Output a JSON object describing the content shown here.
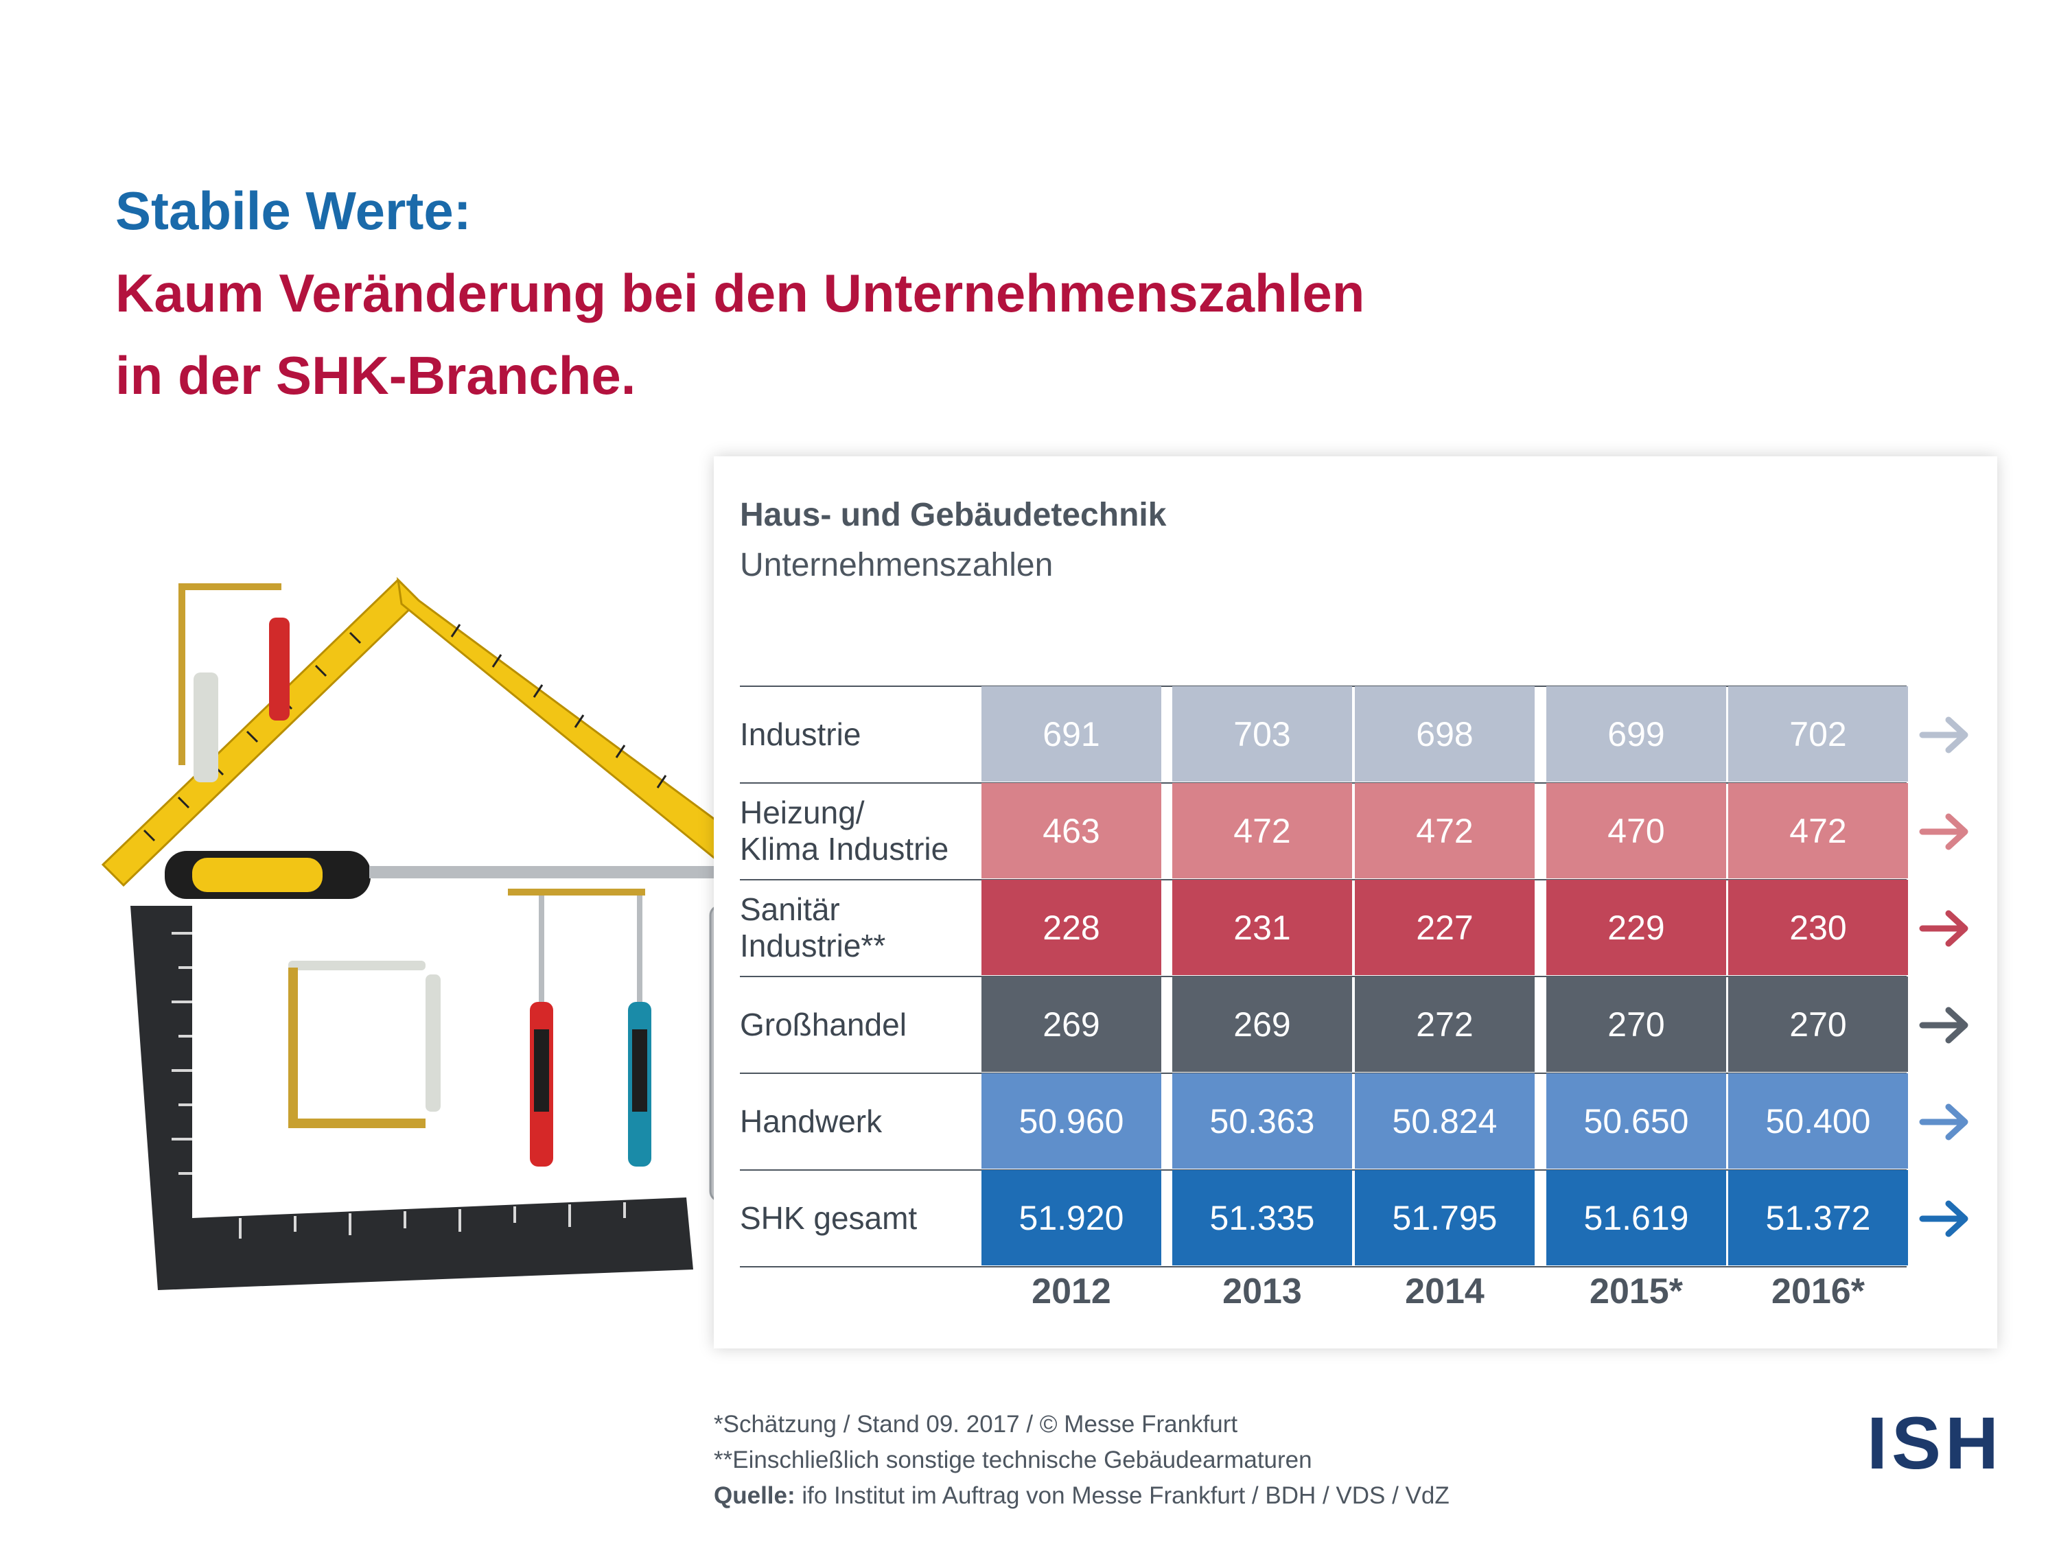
{
  "headline": {
    "line1": "Stabile Werte:",
    "line2": "Kaum Veränderung bei den Unternehmenszahlen",
    "line3": "in der SHK-Branche."
  },
  "chart_data": {
    "type": "table",
    "title": "Haus- und Gebäudetechnik",
    "subtitle": "Unternehmenszahlen",
    "categories": [
      "2012",
      "2013",
      "2014",
      "2015*",
      "2016*"
    ],
    "series": [
      {
        "name": "Industrie",
        "values": [
          "691",
          "703",
          "698",
          "699",
          "702"
        ],
        "color": "#b7c0d0",
        "arrow_color": "#b7c0d0"
      },
      {
        "name": "Heizung/\nKlima Industrie",
        "values": [
          "463",
          "472",
          "472",
          "470",
          "472"
        ],
        "color": "#d8828a",
        "arrow_color": "#d8828a"
      },
      {
        "name": "Sanitär\nIndustrie**",
        "values": [
          "228",
          "231",
          "227",
          "229",
          "230"
        ],
        "color": "#c14558",
        "arrow_color": "#c14558"
      },
      {
        "name": "Großhandel",
        "values": [
          "269",
          "269",
          "272",
          "270",
          "270"
        ],
        "color": "#59616b",
        "arrow_color": "#59616b"
      },
      {
        "name": "Handwerk",
        "values": [
          "50.960",
          "50.363",
          "50.824",
          "50.650",
          "50.400"
        ],
        "color": "#5f8fcb",
        "arrow_color": "#5f8fcb"
      },
      {
        "name": "SHK gesamt",
        "values": [
          "51.920",
          "51.335",
          "51.795",
          "51.619",
          "51.372"
        ],
        "color": "#1e6db5",
        "arrow_color": "#1e6db5"
      }
    ]
  },
  "footnotes": {
    "line1": "*Schätzung / Stand 09. 2017 / © Messe Frankfurt",
    "line2": "**Einschließlich sonstige technische Gebäudearmaturen",
    "source_label": "Quelle:",
    "source_text": " ifo Institut im Auftrag von Messe Frankfurt / BDH / VDS / VdZ"
  },
  "logo": "ISH",
  "illustration": {
    "icons": [
      "folding-ruler-icon",
      "screwdriver-icon",
      "carpenter-square-icon",
      "wall-plug-icon",
      "wood-screw-icon",
      "wrench-icon"
    ]
  }
}
